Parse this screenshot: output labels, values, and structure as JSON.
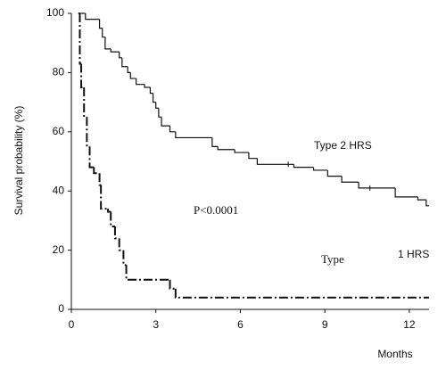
{
  "chart_data": {
    "type": "survival",
    "ylabel": "Survival    probability    (%)",
    "xlabel": "Months",
    "xlim": [
      0,
      12.7
    ],
    "ylim": [
      0,
      100
    ],
    "xticks": [
      0,
      3,
      6,
      9,
      12
    ],
    "yticks": [
      0,
      20,
      40,
      60,
      80,
      100
    ],
    "series": [
      {
        "name": "Type  2 HRS",
        "color": "#111111",
        "style": "solid",
        "x": [
          0.25,
          0.5,
          1.0,
          1.1,
          1.2,
          1.4,
          1.7,
          1.8,
          2.0,
          2.1,
          2.3,
          2.6,
          2.8,
          2.9,
          3.0,
          3.1,
          3.2,
          3.5,
          3.7,
          5.0,
          5.2,
          5.8,
          6.3,
          6.6,
          7.9,
          8.6,
          9.1,
          9.6,
          10.2,
          11.5,
          12.3,
          12.6
        ],
        "values": [
          100,
          98,
          95,
          92,
          88,
          87,
          85,
          82,
          80,
          78,
          76,
          75,
          73,
          70,
          68,
          65,
          62,
          60,
          58,
          55,
          54,
          53,
          51,
          49,
          48,
          47,
          45,
          43,
          41,
          38,
          37,
          35
        ],
        "censored_x": [
          7.7,
          10.6
        ],
        "censored_values": [
          49,
          41
        ]
      },
      {
        "color": "#111111",
        "style": "dashdot",
        "x": [
          0.25,
          0.3,
          0.35,
          0.45,
          0.55,
          0.65,
          0.8,
          1.0,
          1.05,
          1.3,
          1.4,
          1.55,
          1.7,
          1.85,
          1.95,
          3.5,
          3.7
        ],
        "values": [
          100,
          83,
          75,
          65,
          55,
          48,
          46,
          42,
          34,
          33,
          28,
          24,
          20,
          15,
          10,
          7,
          4
        ]
      }
    ],
    "annotations": [
      "P<0.0001",
      "Type",
      "1 HRS"
    ]
  }
}
